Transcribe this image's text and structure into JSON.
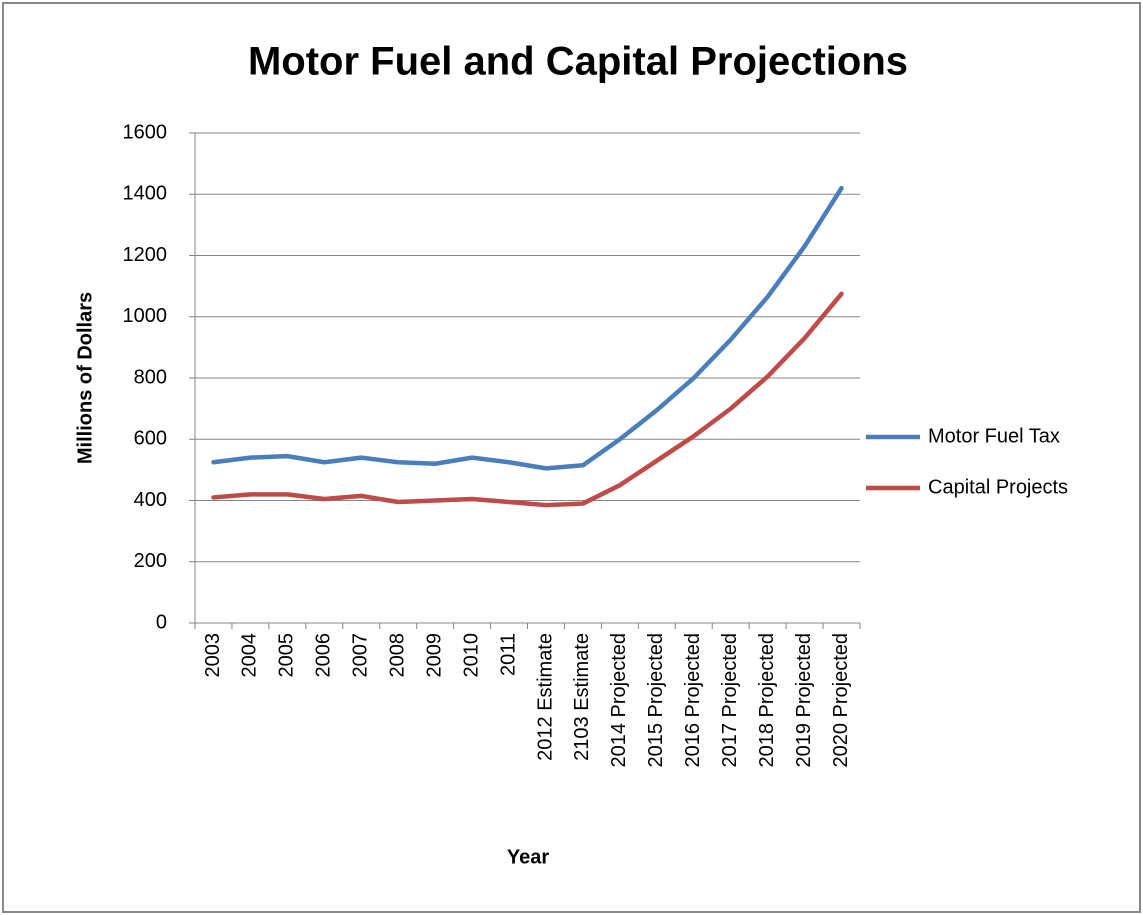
{
  "chart_data": {
    "type": "line",
    "title": "Motor Fuel and Capital Projections",
    "x_label": "Year",
    "y_label": "Millions of Dollars",
    "categories": [
      "2003",
      "2004",
      "2005",
      "2006",
      "2007",
      "2008",
      "2009",
      "2010",
      "2011",
      "2012 Estimate",
      "2103 Estimate",
      "2014 Projected",
      "2015 Projected",
      "2016 Projected",
      "2017 Projected",
      "2018 Projected",
      "2019 Projected",
      "2020 Projected"
    ],
    "series": [
      {
        "name": "Motor Fuel Tax",
        "color": "#4a7ebb",
        "values": [
          525,
          540,
          545,
          525,
          540,
          525,
          520,
          540,
          525,
          505,
          515,
          600,
          695,
          800,
          925,
          1065,
          1230,
          1420
        ]
      },
      {
        "name": "Capital Projects",
        "color": "#be4b48",
        "values": [
          410,
          420,
          420,
          405,
          415,
          395,
          400,
          405,
          395,
          385,
          390,
          450,
          530,
          610,
          700,
          805,
          930,
          1075
        ]
      }
    ],
    "ylim": [
      0,
      1600
    ],
    "yticks": [
      0,
      200,
      400,
      600,
      800,
      1000,
      1200,
      1400,
      1600
    ],
    "grid": true,
    "legend": "right"
  }
}
